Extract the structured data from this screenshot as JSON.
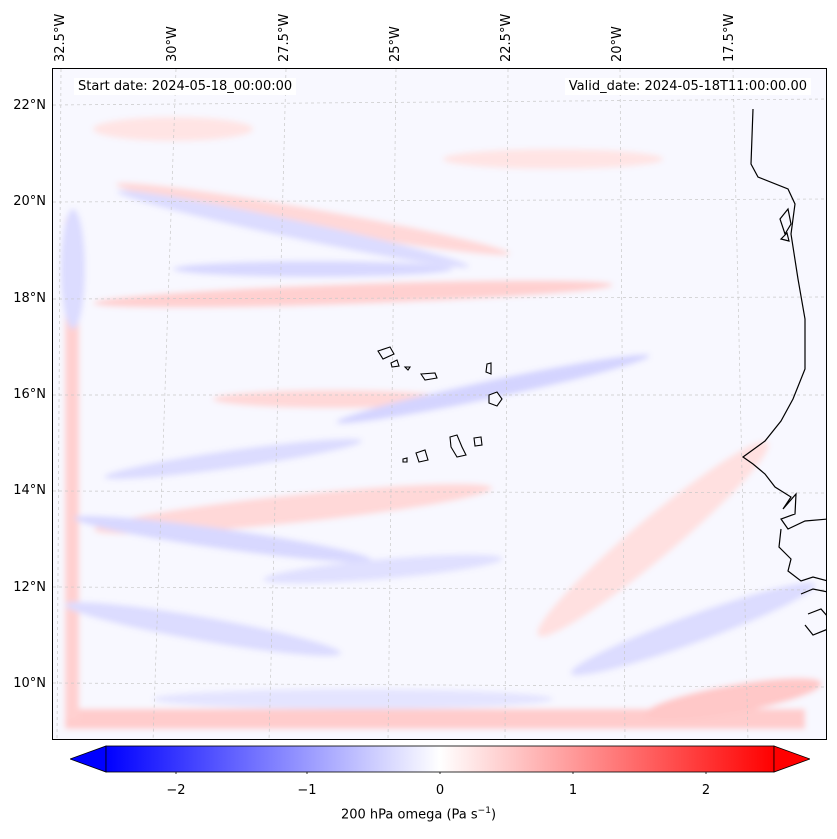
{
  "header": {
    "start_date": "Start date: 2024-05-18_00:00:00",
    "valid_date": "Valid_date: 2024-05-18T11:00:00.00"
  },
  "axes": {
    "longitude_labels": [
      "32.5°W",
      "30°W",
      "27.5°W",
      "25°W",
      "22.5°W",
      "20°W",
      "17.5°W"
    ],
    "latitude_labels": [
      "22°N",
      "20°N",
      "18°N",
      "16°N",
      "14°N",
      "12°N",
      "10°N"
    ]
  },
  "colorbar": {
    "title_main": "200 hPa omega (Pa s",
    "title_sup": "−1",
    "title_end": ")",
    "tick_labels": [
      "−2",
      "−1",
      "0",
      "1",
      "2"
    ],
    "min": -2.5,
    "max": 2.5,
    "low_color": "#0000ff",
    "mid_color": "#ffffff",
    "high_color": "#ff0000"
  },
  "map": {
    "ocean_background": "#f8f8ff",
    "coast_color": "#000000",
    "grid_color": "#c8c8c8"
  }
}
